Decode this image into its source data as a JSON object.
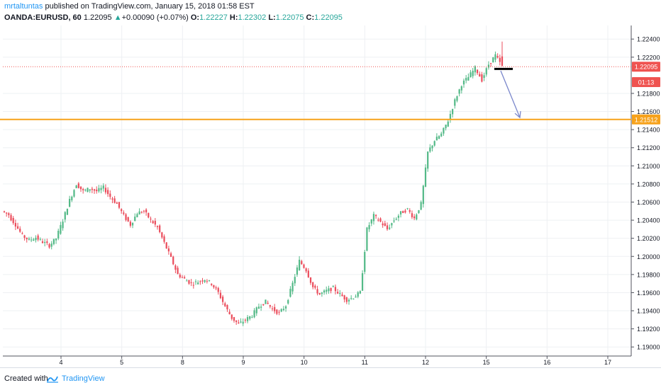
{
  "header": {
    "author": "mrtaltuntas",
    "published_text": " published on TradingView.com, January 15, 2018 01:58 EST",
    "symbol": "OANDA:EURUSD, 60",
    "last": "1.22095",
    "change": "+0.00090 (+0.07%)",
    "o_label": "O:",
    "o_value": "1.22227",
    "h_label": "H:",
    "h_value": "1.22302",
    "l_label": "L:",
    "l_value": "1.22075",
    "c_label": "C:",
    "c_value": "1.22095"
  },
  "footer": {
    "created": "Created with",
    "brand": "TradingView"
  },
  "chart_data": {
    "type": "candlestick",
    "ylim": [
      1.189,
      1.2255
    ],
    "y_ticks": [
      "1.22400",
      "1.22200",
      "1.21800",
      "1.21600",
      "1.21400",
      "1.21200",
      "1.21000",
      "1.20800",
      "1.20600",
      "1.20400",
      "1.20200",
      "1.20000",
      "1.19800",
      "1.19600",
      "1.19400",
      "1.19200",
      "1.19000"
    ],
    "x_ticks": [
      "4",
      "5",
      "8",
      "9",
      "10",
      "11",
      "12",
      "15",
      "16",
      "17"
    ],
    "price_labels": [
      {
        "text": "1.22095",
        "value": 1.22095,
        "color": "#ef5350"
      },
      {
        "text": "01:13",
        "value": 1.21925,
        "color": "#ef5350"
      },
      {
        "text": "1.21512",
        "value": 1.21512,
        "color": "#f7a21b"
      }
    ],
    "axis_stub": "1",
    "horizontal_line": {
      "value": 1.21512,
      "color": "#f7a21b"
    },
    "last_price_line": {
      "value": 1.22095,
      "color": "#ef5350"
    },
    "price_path": [
      [
        1.205,
        1.2046
      ],
      [
        1.2045,
        1.2035
      ],
      [
        1.2035,
        1.2023
      ],
      [
        1.2023,
        1.2018
      ],
      [
        1.2018,
        1.2021
      ],
      [
        1.2021,
        1.2016
      ],
      [
        1.2016,
        1.2012
      ],
      [
        1.2012,
        1.202
      ],
      [
        1.202,
        1.204
      ],
      [
        1.204,
        1.2062
      ],
      [
        1.2062,
        1.208
      ],
      [
        1.208,
        1.2072
      ],
      [
        1.2072,
        1.2075
      ],
      [
        1.2075,
        1.2072
      ],
      [
        1.2072,
        1.2076
      ],
      [
        1.2076,
        1.2066
      ],
      [
        1.2066,
        1.2058
      ],
      [
        1.2058,
        1.2045
      ],
      [
        1.2045,
        1.2035
      ],
      [
        1.2035,
        1.2048
      ],
      [
        1.2048,
        1.205
      ],
      [
        1.205,
        1.204
      ],
      [
        1.204,
        1.2032
      ],
      [
        1.2032,
        1.2015
      ],
      [
        1.2015,
        1.1998
      ],
      [
        1.1998,
        1.198
      ],
      [
        1.198,
        1.1975
      ],
      [
        1.1975,
        1.197
      ],
      [
        1.197,
        1.1972
      ],
      [
        1.1972,
        1.1975
      ],
      [
        1.1975,
        1.197
      ],
      [
        1.197,
        1.196
      ],
      [
        1.196,
        1.1945
      ],
      [
        1.1945,
        1.1932
      ],
      [
        1.1932,
        1.1925
      ],
      [
        1.1925,
        1.193
      ],
      [
        1.193,
        1.1935
      ],
      [
        1.1935,
        1.1945
      ],
      [
        1.1945,
        1.195
      ],
      [
        1.195,
        1.1942
      ],
      [
        1.1942,
        1.1937
      ],
      [
        1.1937,
        1.1946
      ],
      [
        1.1946,
        1.197
      ],
      [
        1.197,
        1.1995
      ],
      [
        1.1995,
        1.1985
      ],
      [
        1.1985,
        1.1966
      ],
      [
        1.1966,
        1.1958
      ],
      [
        1.1958,
        1.1962
      ],
      [
        1.1962,
        1.1965
      ],
      [
        1.1965,
        1.1958
      ],
      [
        1.1958,
        1.1952
      ],
      [
        1.1952,
        1.1955
      ],
      [
        1.1955,
        1.196
      ],
      [
        1.196,
        1.203
      ],
      [
        1.203,
        1.2045
      ],
      [
        1.2045,
        1.2038
      ],
      [
        1.2038,
        1.203
      ],
      [
        1.203,
        1.204
      ],
      [
        1.204,
        1.2048
      ],
      [
        1.2048,
        1.2052
      ],
      [
        1.2052,
        1.2042
      ],
      [
        1.2042,
        1.2058
      ],
      [
        1.2058,
        1.2115
      ],
      [
        1.2115,
        1.2128
      ],
      [
        1.2128,
        1.2135
      ],
      [
        1.2135,
        1.215
      ],
      [
        1.215,
        1.2172
      ],
      [
        1.2172,
        1.219
      ],
      [
        1.219,
        1.2198
      ],
      [
        1.2198,
        1.2208
      ],
      [
        1.2208,
        1.2195
      ],
      [
        1.2195,
        1.2212
      ],
      [
        1.2212,
        1.2222
      ],
      [
        1.2222,
        1.22095
      ]
    ],
    "annotation": {
      "type": "arrow",
      "from": [
        0.72,
        1.2205
      ],
      "to": [
        0.785,
        1.2151
      ],
      "color": "#7986cb"
    },
    "marker": {
      "type": "thick-line",
      "value": 1.2207,
      "color": "#000000"
    }
  }
}
